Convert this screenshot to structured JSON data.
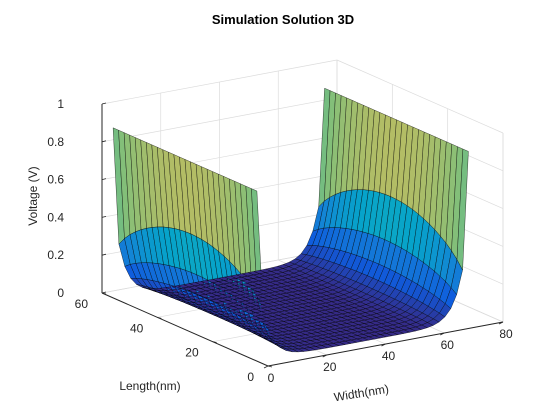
{
  "chart_data": {
    "type": "surface3d",
    "title": "Simulation Solution 3D",
    "xlabel": "Width(nm)",
    "ylabel": "Length(nm)",
    "zlabel": "Voltage (V)",
    "xlim": [
      0,
      80
    ],
    "ylim": [
      0,
      60
    ],
    "zlim": [
      0,
      1
    ],
    "xticks": [
      "0",
      "20",
      "40",
      "60",
      "80"
    ],
    "yticks": [
      "0",
      "20",
      "40",
      "60"
    ],
    "zticks": [
      "0",
      "0.2",
      "0.4",
      "0.6",
      "0.8",
      "1"
    ],
    "grid": true,
    "colormap": "parula",
    "colormap_stops": [
      "#352a87",
      "#0f5cdd",
      "#1481d6",
      "#06a4ca",
      "#2eb7a4",
      "#87bf77",
      "#d1bb59",
      "#fec832",
      "#f9fb0e"
    ],
    "surface": {
      "description_of_values": "V(x,y) on 0<=x<=72, 4<=y<=56: 0.9 at x=0 and x=72 edges, ~0 in the interior, falling off as a Laplace solution",
      "boundary_voltage_left": 0.9,
      "boundary_voltage_right": 0.9,
      "interior_voltage": 0
    }
  }
}
